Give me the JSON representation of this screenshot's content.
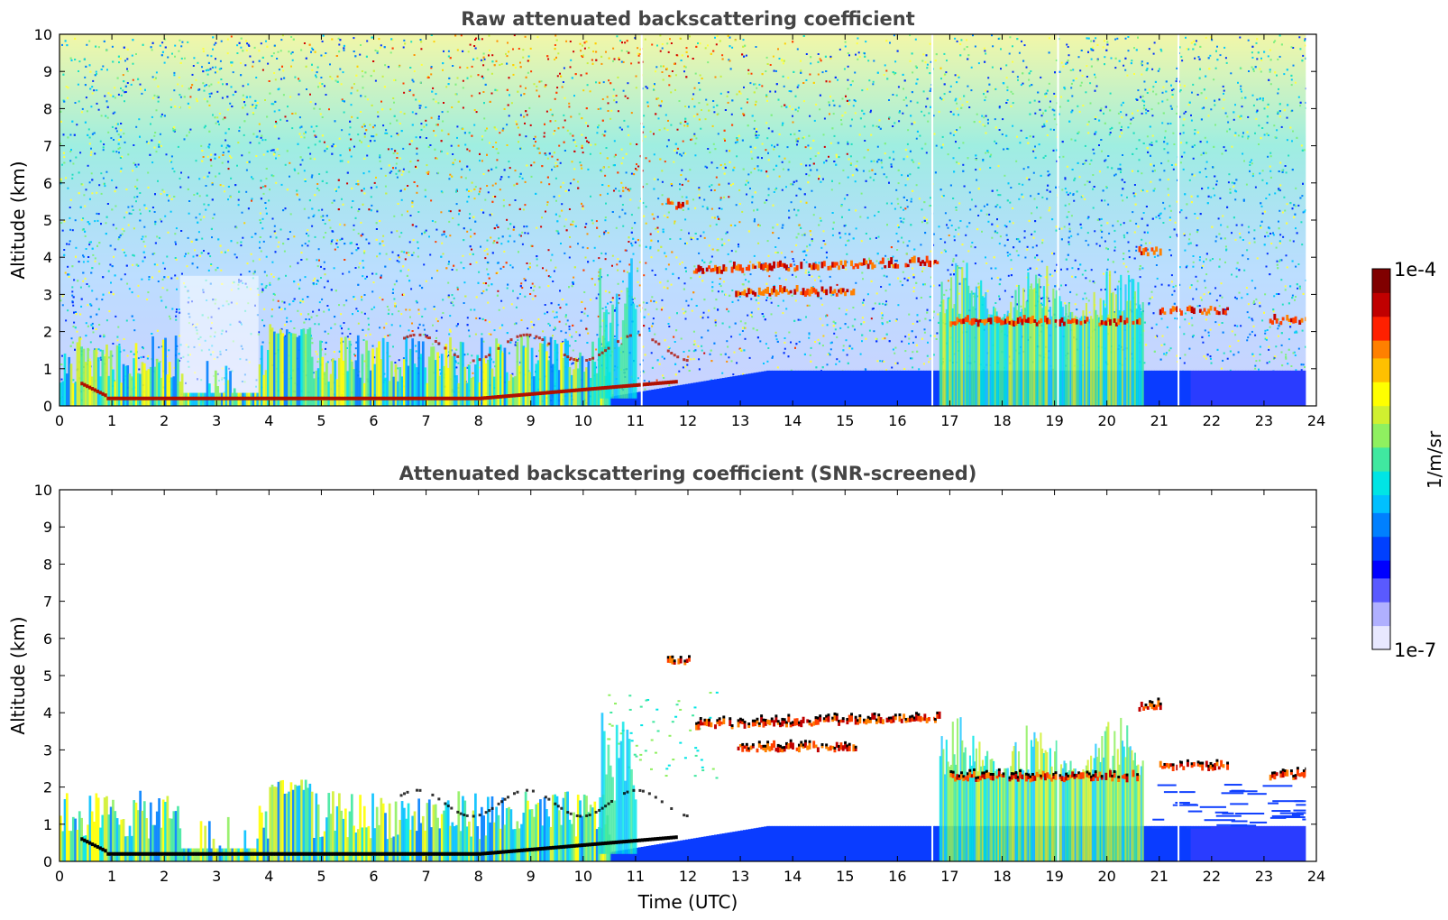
{
  "chart_data": [
    {
      "type": "heatmap",
      "title": "Raw attenuated backscattering coefficient",
      "xlabel": "",
      "ylabel": "Altitude (km)",
      "xlim": [
        0,
        24
      ],
      "ylim": [
        0,
        10
      ],
      "xticks": [
        "0",
        "1",
        "2",
        "3",
        "4",
        "5",
        "6",
        "7",
        "8",
        "9",
        "10",
        "11",
        "12",
        "13",
        "14",
        "15",
        "16",
        "17",
        "18",
        "19",
        "20",
        "21",
        "22",
        "23",
        "24"
      ],
      "yticks": [
        "0",
        "1",
        "2",
        "3",
        "4",
        "5",
        "6",
        "7",
        "8",
        "9",
        "10"
      ],
      "data_end_time": 23.8,
      "gap_times": [
        11.1,
        16.65,
        19.05,
        21.35
      ],
      "noise": "dense speckle across all altitudes, increasing toward 8-10 km around 7-12 UTC",
      "layers": [
        {
          "kind": "boundary-layer",
          "t_start": 0,
          "t_end": 10.5,
          "alt_top_km": 2.2
        },
        {
          "kind": "surface-layer",
          "t_start": 10.5,
          "t_end": 23.8,
          "alt_top_km": 0.9
        },
        {
          "kind": "cloud",
          "t_start": 11.6,
          "t_end": 12.0,
          "alt_km": 5.35
        },
        {
          "kind": "cloud",
          "t_start": 12.1,
          "t_end": 16.8,
          "alt_km_from": 3.6,
          "alt_km_to": 3.8
        },
        {
          "kind": "cloud",
          "t_start": 12.9,
          "t_end": 15.2,
          "alt_km": 3.0
        },
        {
          "kind": "cloud",
          "t_start": 17.0,
          "t_end": 20.6,
          "alt_km": 2.2
        },
        {
          "kind": "cloud",
          "t_start": 20.6,
          "t_end": 21.0,
          "alt_km": 4.1
        },
        {
          "kind": "cloud",
          "t_start": 21.0,
          "t_end": 22.3,
          "alt_km": 2.5
        },
        {
          "kind": "cloud",
          "t_start": 23.1,
          "t_end": 23.8,
          "alt_km": 2.25
        }
      ]
    },
    {
      "type": "heatmap",
      "title": "Attenuated backscattering coefficient (SNR-screened)",
      "xlabel": "Time (UTC)",
      "ylabel": "Altitude (km)",
      "xlim": [
        0,
        24
      ],
      "ylim": [
        0,
        10
      ],
      "xticks": [
        "0",
        "1",
        "2",
        "3",
        "4",
        "5",
        "6",
        "7",
        "8",
        "9",
        "10",
        "11",
        "12",
        "13",
        "14",
        "15",
        "16",
        "17",
        "18",
        "19",
        "20",
        "21",
        "22",
        "23",
        "24"
      ],
      "yticks": [
        "0",
        "1",
        "2",
        "3",
        "4",
        "5",
        "6",
        "7",
        "8",
        "9",
        "10"
      ],
      "data_end_time": 23.8,
      "gap_times": [
        16.65,
        19.05,
        21.35
      ],
      "noise": "screened out (white background)",
      "layers": [
        {
          "kind": "boundary-layer",
          "t_start": 0,
          "t_end": 10.5,
          "alt_top_km": 2.2
        },
        {
          "kind": "surface-layer",
          "t_start": 10.5,
          "t_end": 23.8,
          "alt_top_km": 0.9
        },
        {
          "kind": "cloud",
          "t_start": 11.6,
          "t_end": 12.0,
          "alt_km": 5.35
        },
        {
          "kind": "cloud",
          "t_start": 12.1,
          "t_end": 16.8,
          "alt_km_from": 3.6,
          "alt_km_to": 3.8
        },
        {
          "kind": "cloud",
          "t_start": 12.9,
          "t_end": 15.2,
          "alt_km": 3.0
        },
        {
          "kind": "cloud",
          "t_start": 17.0,
          "t_end": 20.6,
          "alt_km": 2.2
        },
        {
          "kind": "cloud",
          "t_start": 20.6,
          "t_end": 21.0,
          "alt_km": 4.1
        },
        {
          "kind": "cloud",
          "t_start": 21.0,
          "t_end": 22.3,
          "alt_km": 2.5
        },
        {
          "kind": "cloud",
          "t_start": 23.1,
          "t_end": 23.8,
          "alt_km": 2.25
        }
      ]
    }
  ],
  "colorbar": {
    "label": "1/m/sr",
    "max_label": "1e-4",
    "min_label": "1e-7",
    "range": [
      1e-07,
      0.0001
    ],
    "scale": "log",
    "colors": [
      "#e8e8ff",
      "#b0b0ff",
      "#5a5aff",
      "#0000ff",
      "#0040ff",
      "#0080ff",
      "#00c0ff",
      "#00e5e5",
      "#40e8a0",
      "#8ff060",
      "#d0f030",
      "#ffff00",
      "#ffc000",
      "#ff8000",
      "#ff2000",
      "#c00000",
      "#800000"
    ],
    "cloud_color": "#b01000",
    "screen_top_color": "#000000"
  }
}
